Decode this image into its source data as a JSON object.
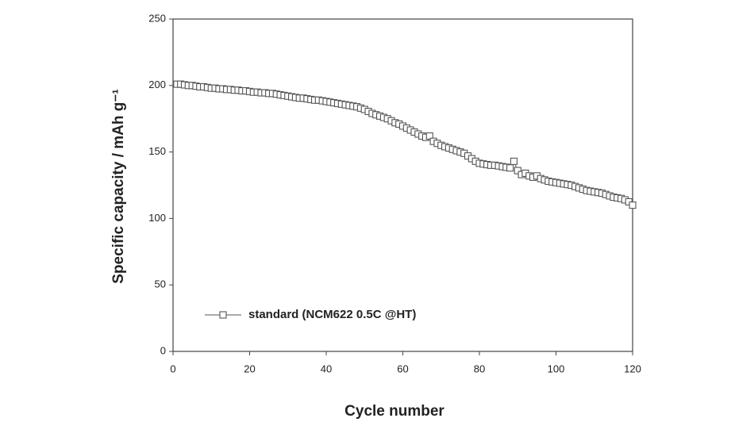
{
  "chart_data": {
    "type": "line",
    "x_label": "Cycle number",
    "y_label": "Specific capacity / mAh g⁻¹",
    "x": [
      1,
      2,
      3,
      4,
      5,
      6,
      7,
      8,
      9,
      10,
      11,
      12,
      13,
      14,
      15,
      16,
      17,
      18,
      19,
      20,
      21,
      22,
      23,
      24,
      25,
      26,
      27,
      28,
      29,
      30,
      31,
      32,
      33,
      34,
      35,
      36,
      37,
      38,
      39,
      40,
      41,
      42,
      43,
      44,
      45,
      46,
      47,
      48,
      49,
      50,
      51,
      52,
      53,
      54,
      55,
      56,
      57,
      58,
      59,
      60,
      61,
      62,
      63,
      64,
      65,
      66,
      67,
      68,
      69,
      70,
      71,
      72,
      73,
      74,
      75,
      76,
      77,
      78,
      79,
      80,
      81,
      82,
      83,
      84,
      85,
      86,
      87,
      88,
      89,
      90,
      91,
      92,
      93,
      94,
      95,
      96,
      97,
      98,
      99,
      100,
      101,
      102,
      103,
      104,
      105,
      106,
      107,
      108,
      109,
      110,
      111,
      112,
      113,
      114,
      115,
      116,
      117,
      118,
      119,
      120
    ],
    "series": [
      {
        "name": "standard (NCM622 0.5C @HT)",
        "color": "#555555",
        "marker": "square",
        "values": [
          201,
          201,
          200.5,
          200,
          200,
          199.5,
          199,
          199,
          198.5,
          198,
          198,
          197.5,
          197.5,
          197,
          197,
          196.5,
          196.5,
          196,
          196,
          195.5,
          195,
          195,
          194.5,
          194.5,
          194,
          194,
          193.5,
          193,
          192.5,
          192,
          191.5,
          191,
          190.5,
          190.5,
          190,
          189.5,
          189,
          189,
          188.5,
          188,
          187.5,
          187,
          186.5,
          186,
          185.5,
          185,
          184.5,
          184,
          183,
          182,
          180.5,
          179,
          178,
          177,
          176,
          175,
          173.5,
          172,
          171,
          169.5,
          168,
          166.5,
          165,
          163.5,
          162,
          161,
          162,
          158,
          156.5,
          155,
          154,
          153,
          152,
          151,
          150,
          149,
          147,
          145,
          143,
          141.5,
          141,
          140.5,
          140,
          140,
          139.5,
          139,
          138.5,
          138,
          143,
          136,
          133,
          134,
          132,
          131,
          132,
          130,
          129,
          128,
          127.5,
          127,
          126.5,
          126,
          125.5,
          125,
          124,
          123,
          122,
          121,
          120.5,
          120,
          119.5,
          119,
          118,
          117,
          116,
          115.5,
          115,
          114,
          112.5,
          110
        ]
      }
    ],
    "xlim": [
      0,
      120
    ],
    "xticks": [
      0,
      20,
      40,
      60,
      80,
      100,
      120
    ],
    "ylim": [
      0,
      250
    ],
    "yticks": [
      0,
      50,
      100,
      150,
      200,
      250
    ],
    "grid": false,
    "legend": "lower left"
  }
}
